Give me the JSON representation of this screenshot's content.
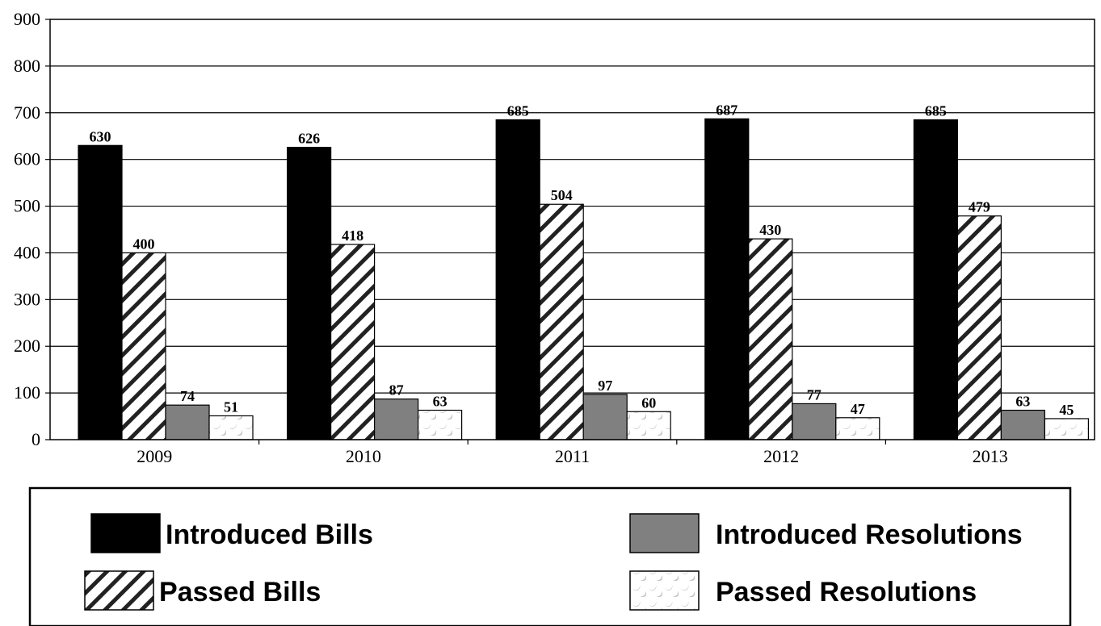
{
  "chart_data": {
    "type": "bar",
    "categories": [
      "2009",
      "2010",
      "2011",
      "2012",
      "2013"
    ],
    "series": [
      {
        "name": "Introduced Bills",
        "values": [
          630,
          626,
          685,
          687,
          685
        ],
        "fill": "#000000",
        "pattern": "solid"
      },
      {
        "name": "Passed Bills",
        "values": [
          400,
          418,
          504,
          430,
          479
        ],
        "fill": "#ffffff",
        "pattern": "diagonal-hatch"
      },
      {
        "name": "Introduced Resolutions",
        "values": [
          74,
          87,
          97,
          77,
          63
        ],
        "fill": "#808080",
        "pattern": "solid"
      },
      {
        "name": "Passed Resolutions",
        "values": [
          51,
          63,
          60,
          47,
          45
        ],
        "fill": "#ffffff",
        "pattern": "crescent-dots"
      }
    ],
    "title": "",
    "xlabel": "",
    "ylabel": "",
    "ylim": [
      0,
      900
    ],
    "yticks": [
      0,
      100,
      200,
      300,
      400,
      500,
      600,
      700,
      800,
      900
    ],
    "grid": true,
    "legend_position": "bottom"
  }
}
